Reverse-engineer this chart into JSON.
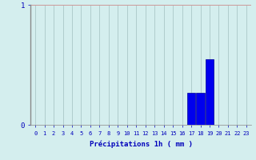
{
  "hours": [
    0,
    1,
    2,
    3,
    4,
    5,
    6,
    7,
    8,
    9,
    10,
    11,
    12,
    13,
    14,
    15,
    16,
    17,
    18,
    19,
    20,
    21,
    22,
    23
  ],
  "values": [
    0,
    0,
    0,
    0,
    0,
    0,
    0,
    0,
    0,
    0,
    0,
    0,
    0,
    0,
    0,
    0,
    0,
    0.27,
    0.27,
    0.55,
    0,
    0,
    0,
    0
  ],
  "bar_color": "#0000ee",
  "bar_edge_color": "#000099",
  "background_color": "#d4eeee",
  "grid_color_x": "#b0cccc",
  "grid_color_y": "#cc9999",
  "spine_color": "#888888",
  "axis_color": "#0000bb",
  "tick_color": "#0000bb",
  "label_color": "#0000bb",
  "xlabel": "Précipitations 1h ( mm )",
  "ylim": [
    0,
    1.0
  ],
  "yticks": [
    0,
    1
  ],
  "xlim": [
    -0.5,
    23.5
  ]
}
